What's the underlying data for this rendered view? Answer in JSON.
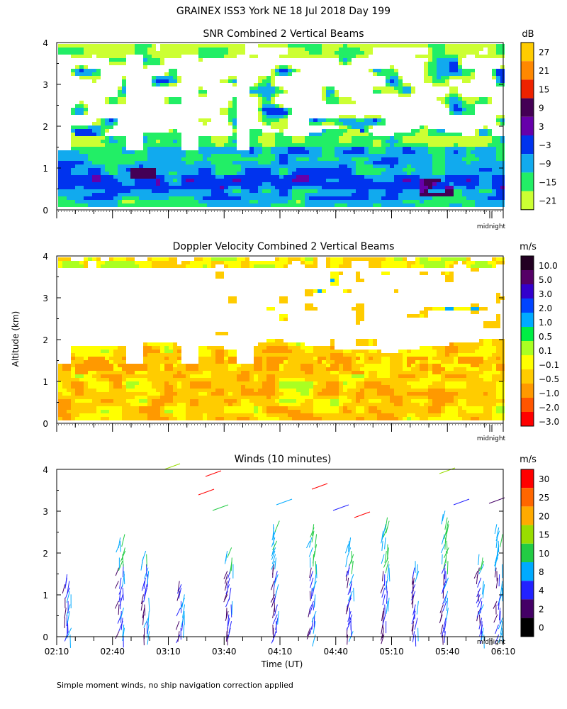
{
  "page": {
    "title": "GRAINEX ISS3 York NE  18 Jul 2018 Day 199",
    "yaxis_label": "Altitude (km)",
    "xaxis_label": "Time (UT)",
    "footnote": "Simple moment winds, no ship navigation correction applied",
    "midnight_label": "midnight"
  },
  "chart_data": [
    {
      "type": "heatmap",
      "title": "SNR Combined 2 Vertical Beams",
      "ylabel": "Altitude (km)",
      "ylim": [
        0,
        4
      ],
      "yticks": [
        "0",
        "1",
        "2",
        "3",
        "4"
      ],
      "colorbar": {
        "unit": "dB",
        "levels": [
          "27",
          "21",
          "15",
          "9",
          "3",
          "−3",
          "−9",
          "−15",
          "−21"
        ],
        "colors": [
          "#ffcc00",
          "#ff8800",
          "#ee2200",
          "#440055",
          "#6600aa",
          "#0033ee",
          "#11aaee",
          "#22ee66",
          "#ccff33"
        ]
      }
    },
    {
      "type": "heatmap",
      "title": "Doppler Velocity Combined 2 Vertical Beams",
      "ylabel": "Altitude (km)",
      "ylim": [
        0,
        4
      ],
      "yticks": [
        "0",
        "1",
        "2",
        "3",
        "4"
      ],
      "colorbar": {
        "unit": "m/s",
        "levels": [
          "10.0",
          "5.0",
          "3.0",
          "2.0",
          "1.0",
          "0.5",
          "0.1",
          "−0.1",
          "−0.5",
          "−1.0",
          "−2.0",
          "−3.0"
        ],
        "colors": [
          "#220022",
          "#550066",
          "#3300cc",
          "#0044ff",
          "#00aaff",
          "#00ee44",
          "#aaff22",
          "#ffff00",
          "#ffcc00",
          "#ff9900",
          "#ff5500",
          "#ff0000"
        ]
      }
    },
    {
      "type": "scatter",
      "title": "Winds (10 minutes)",
      "ylabel": "Altitude (km)",
      "ylim": [
        0,
        4
      ],
      "yticks": [
        "0",
        "1",
        "2",
        "3",
        "4"
      ],
      "xlabel": "Time (UT)",
      "xticks": [
        "02:10",
        "02:40",
        "03:10",
        "03:40",
        "04:10",
        "04:40",
        "05:10",
        "05:40",
        "06:10"
      ],
      "xlim_minutes_ut": [
        130,
        370
      ],
      "colorbar": {
        "unit": "m/s",
        "levels": [
          "30",
          "25",
          "20",
          "15",
          "10",
          "8",
          "4",
          "2",
          "0"
        ],
        "colors": [
          "#ff0000",
          "#ff6600",
          "#ffaa00",
          "#99dd00",
          "#22cc44",
          "#00aaff",
          "#2222ff",
          "#440066",
          "#000000"
        ]
      },
      "profile_times_ut": [
        "02:16",
        "02:45",
        "02:58",
        "03:17",
        "03:43",
        "04:08",
        "04:28",
        "04:48",
        "05:07",
        "05:23",
        "05:39",
        "05:58",
        "06:08"
      ]
    }
  ]
}
